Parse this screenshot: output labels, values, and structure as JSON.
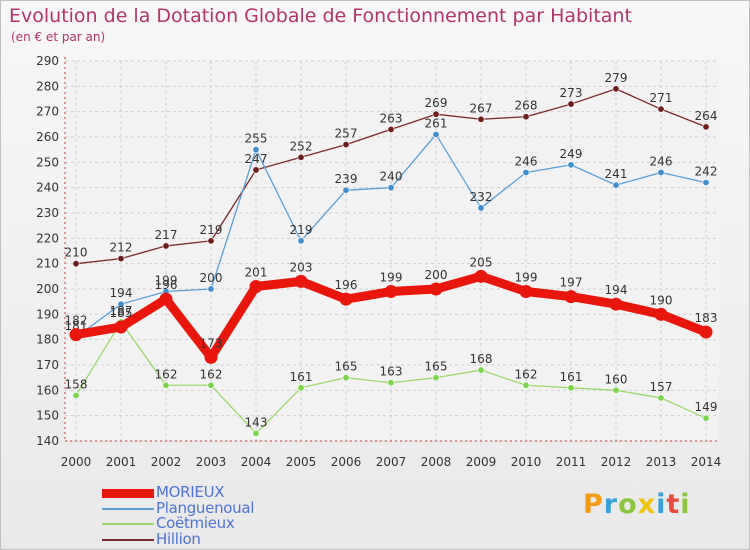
{
  "title": "Evolution de la Dotation Globale de Fonctionnement par Habitant",
  "subtitle": "(en € et par an)",
  "logo": {
    "text": "Proxiti",
    "letters": [
      {
        "ch": "P",
        "color": "#f39c12"
      },
      {
        "ch": "r",
        "color": "#3aa0d8"
      },
      {
        "ch": "o",
        "color": "#8cc63f"
      },
      {
        "ch": "x",
        "color": "#f1c40f"
      },
      {
        "ch": "i",
        "color": "#3aa0d8"
      },
      {
        "ch": "t",
        "color": "#e74c3c"
      },
      {
        "ch": "i",
        "color": "#8cc63f"
      }
    ]
  },
  "chart_data": {
    "type": "line",
    "x": [
      "2000",
      "2001",
      "2002",
      "2003",
      "2004",
      "2005",
      "2006",
      "2007",
      "2008",
      "2009",
      "2010",
      "2011",
      "2012",
      "2013",
      "2014"
    ],
    "ylim": [
      140,
      290
    ],
    "yticks": [
      140,
      150,
      160,
      170,
      180,
      190,
      200,
      210,
      220,
      230,
      240,
      250,
      260,
      270,
      280,
      290
    ],
    "grid": true,
    "legend_position": "bottom-left",
    "series": [
      {
        "name": "MORIEUX",
        "color": "#e8160c",
        "marker_color": "#e8160c",
        "width": 9,
        "values": [
          182,
          185,
          196,
          173,
          201,
          203,
          196,
          199,
          200,
          205,
          199,
          197,
          194,
          190,
          183
        ]
      },
      {
        "name": "Planguenoual",
        "color": "#5d9fd3",
        "marker_color": "#3f8ed0",
        "width": 1.3,
        "values": [
          181,
          194,
          199,
          200,
          255,
          219,
          239,
          240,
          261,
          232,
          246,
          249,
          241,
          246,
          242
        ]
      },
      {
        "name": "Coëtmieux",
        "color": "#9bd66a",
        "marker_color": "#7bd64a",
        "width": 1.3,
        "values": [
          158,
          187,
          162,
          162,
          143,
          161,
          165,
          163,
          165,
          168,
          162,
          161,
          160,
          157,
          149
        ]
      },
      {
        "name": "Hillion",
        "color": "#7a2a2a",
        "marker_color": "#6e1c1c",
        "width": 1.3,
        "values": [
          210,
          212,
          217,
          219,
          247,
          252,
          257,
          263,
          269,
          267,
          268,
          273,
          279,
          271,
          264
        ]
      }
    ]
  }
}
